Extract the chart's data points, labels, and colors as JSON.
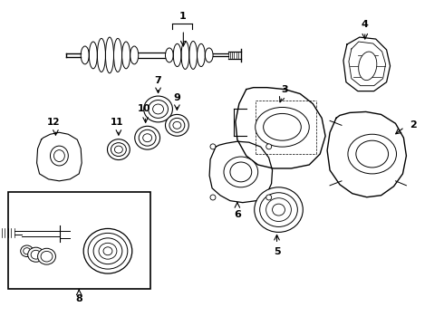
{
  "bg_color": "#ffffff",
  "line_color": "#000000",
  "label_color": "#000000",
  "fig_width": 4.9,
  "fig_height": 3.6,
  "dpi": 100
}
